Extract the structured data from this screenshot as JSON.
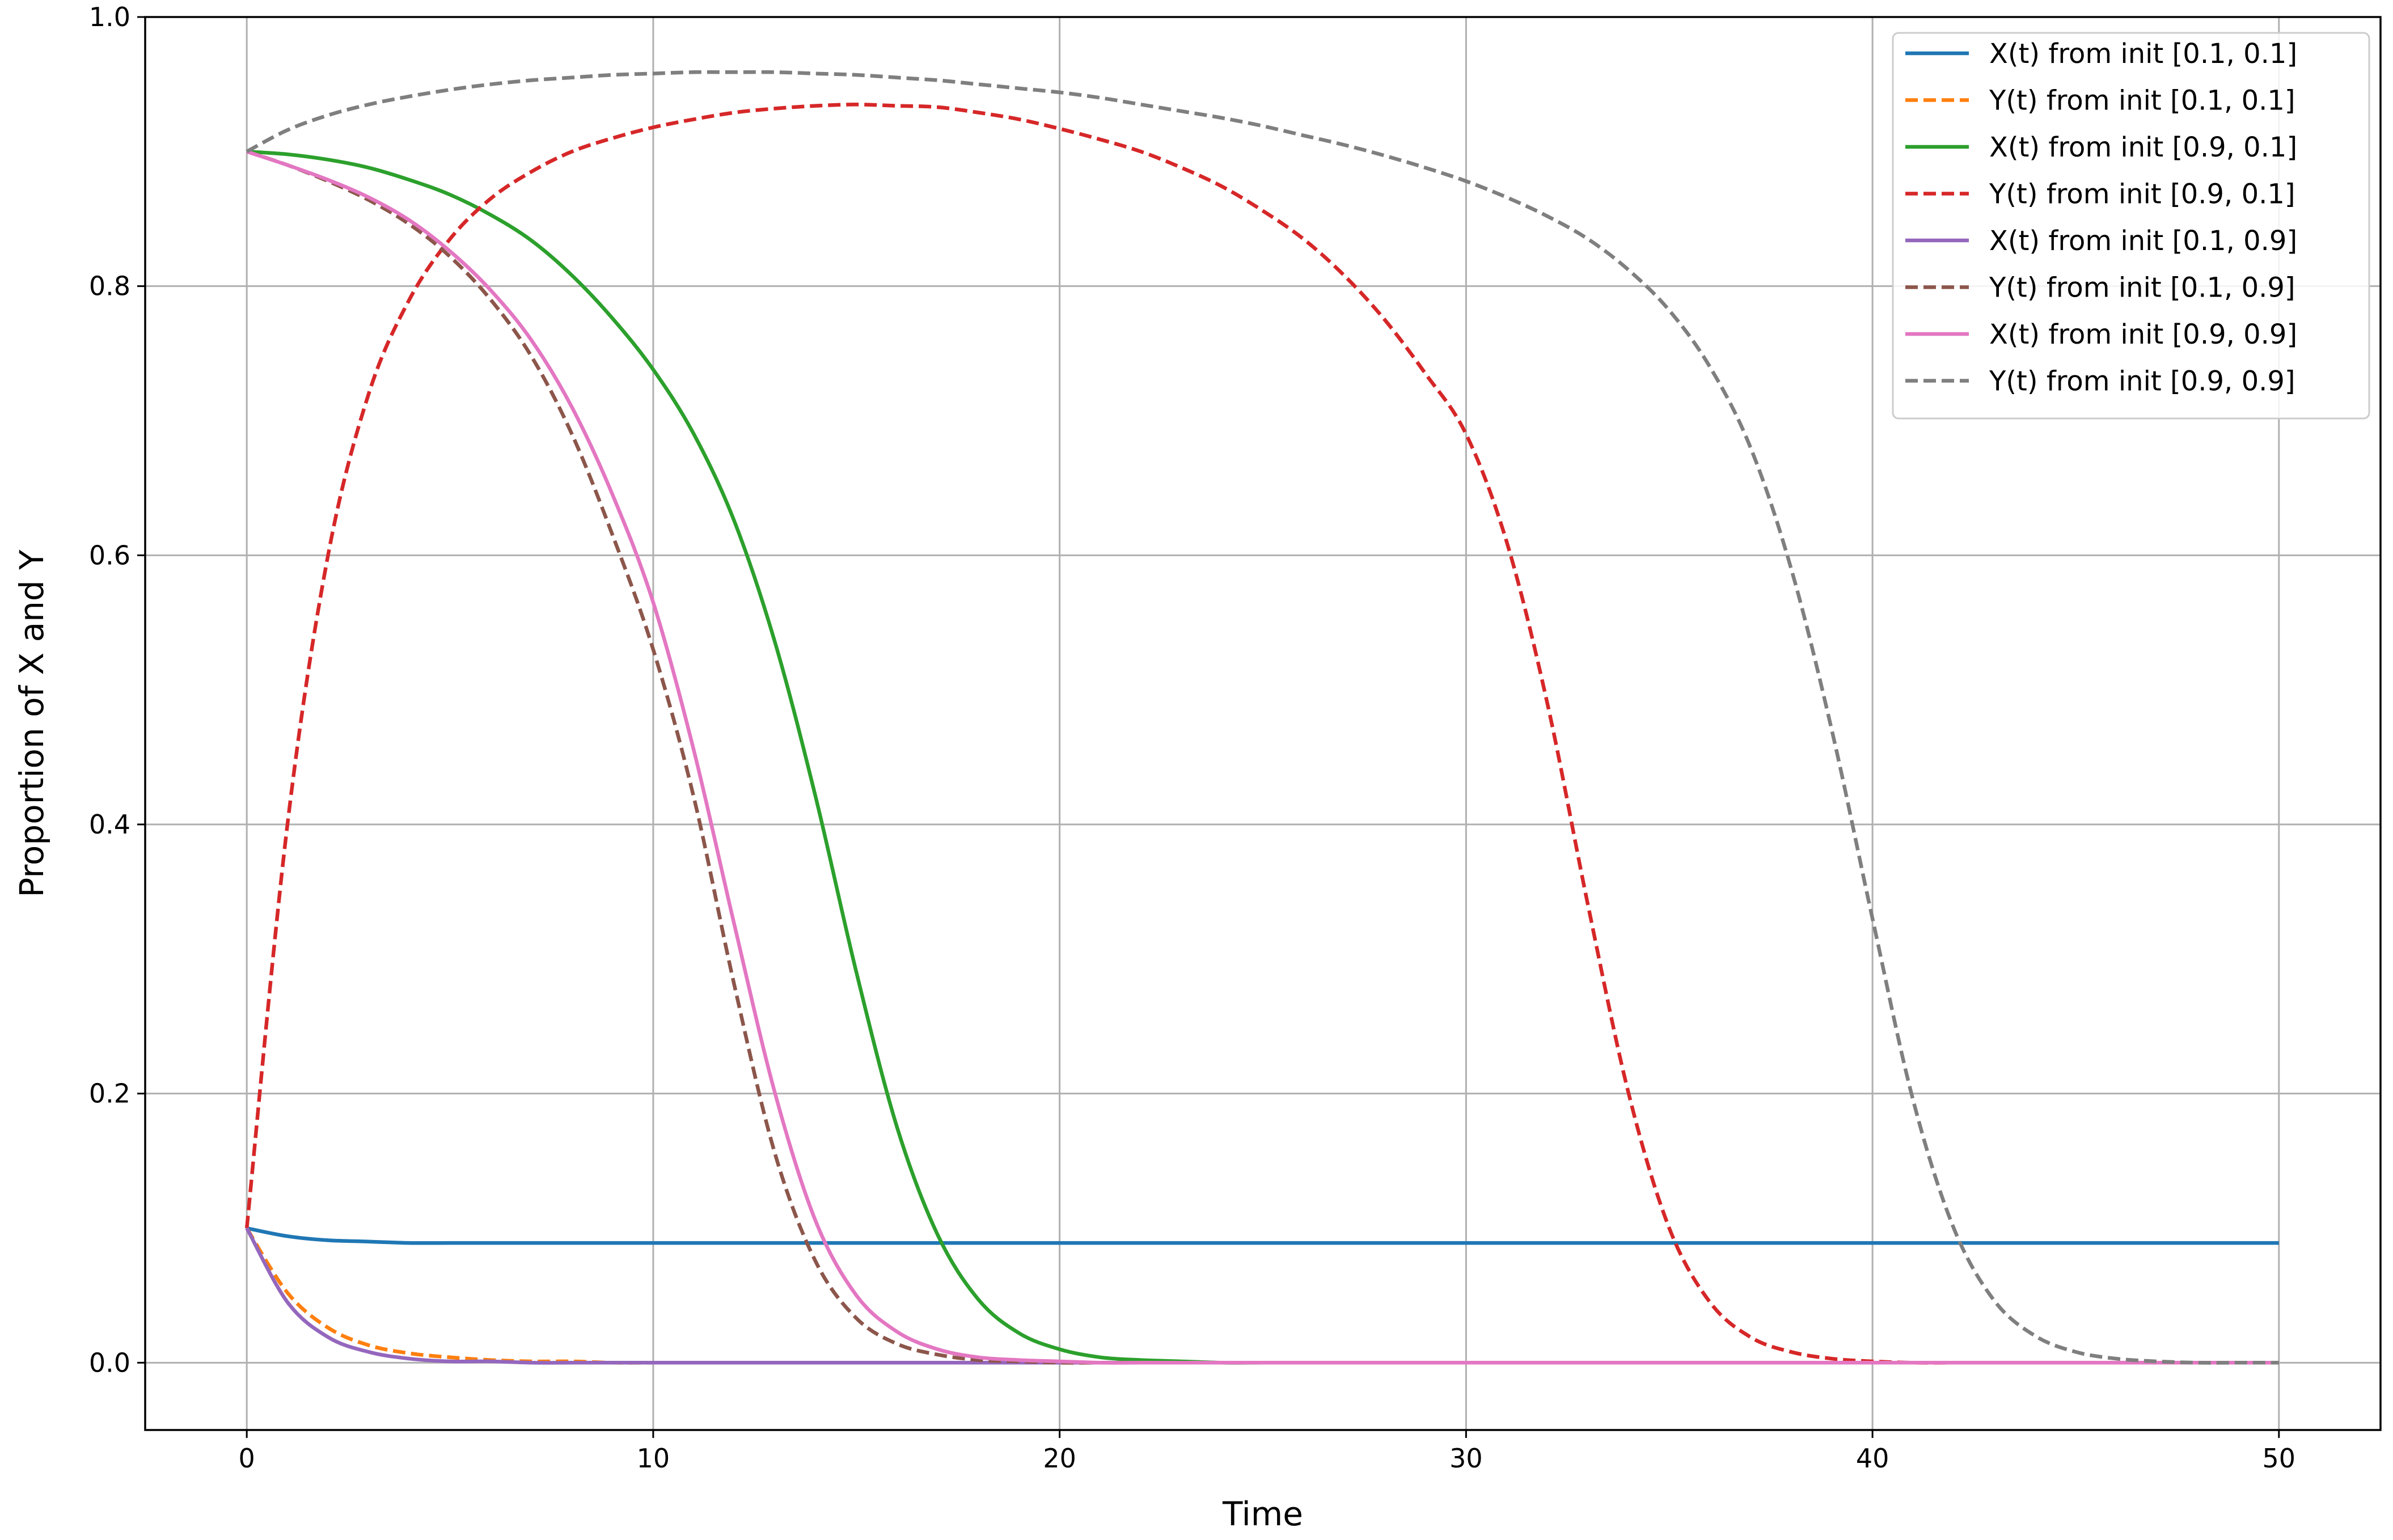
{
  "chart_data": {
    "type": "line",
    "title": "",
    "xlabel": "Time",
    "ylabel": "Proportion of X and Y",
    "xlim": [
      -2.5,
      52.5
    ],
    "ylim": [
      -0.05,
      1.0
    ],
    "xticks": [
      0,
      10,
      20,
      30,
      40,
      50
    ],
    "xtick_labels": [
      "0",
      "10",
      "20",
      "30",
      "40",
      "50"
    ],
    "yticks": [
      0.0,
      0.2,
      0.4,
      0.6,
      0.8,
      1.0
    ],
    "ytick_labels": [
      "0.0",
      "0.2",
      "0.4",
      "0.6",
      "0.8",
      "1.0"
    ],
    "grid": true,
    "legend_position": "top-right",
    "x": [
      0,
      1,
      2,
      3,
      4,
      5,
      6,
      7,
      8,
      9,
      10,
      11,
      12,
      13,
      14,
      15,
      16,
      17,
      18,
      19,
      20,
      21,
      22,
      23,
      24,
      25,
      26,
      27,
      28,
      29,
      30,
      31,
      32,
      33,
      34,
      35,
      36,
      37,
      38,
      39,
      40,
      41,
      42,
      43,
      44,
      45,
      46,
      47,
      48,
      49,
      50
    ],
    "series": [
      {
        "name": "X(t) from init [0.1, 0.1]",
        "color": "#1f77b4",
        "dash": "solid",
        "values": [
          0.1,
          0.094,
          0.091,
          0.09,
          0.089,
          0.089,
          0.089,
          0.089,
          0.089,
          0.089,
          0.089,
          0.089,
          0.089,
          0.089,
          0.089,
          0.089,
          0.089,
          0.089,
          0.089,
          0.089,
          0.089,
          0.089,
          0.089,
          0.089,
          0.089,
          0.089,
          0.089,
          0.089,
          0.089,
          0.089,
          0.089,
          0.089,
          0.089,
          0.089,
          0.089,
          0.089,
          0.089,
          0.089,
          0.089,
          0.089,
          0.089,
          0.089,
          0.089,
          0.089,
          0.089,
          0.089,
          0.089,
          0.089,
          0.089,
          0.089,
          0.089
        ]
      },
      {
        "name": "Y(t) from init [0.1, 0.1]",
        "color": "#ff7f0e",
        "dash": "dashed",
        "values": [
          0.1,
          0.052,
          0.026,
          0.013,
          0.007,
          0.004,
          0.002,
          0.001,
          0.001,
          0.0,
          0.0,
          0.0,
          0.0,
          0.0,
          0.0,
          0.0,
          0.0,
          0.0,
          0.0,
          0.0,
          0.0,
          0.0,
          0.0,
          0.0,
          0.0,
          0.0,
          0.0,
          0.0,
          0.0,
          0.0,
          0.0,
          0.0,
          0.0,
          0.0,
          0.0,
          0.0,
          0.0,
          0.0,
          0.0,
          0.0,
          0.0,
          0.0,
          0.0,
          0.0,
          0.0,
          0.0,
          0.0,
          0.0,
          0.0,
          0.0,
          0.0
        ]
      },
      {
        "name": "X(t) from init [0.9, 0.1]",
        "color": "#2ca02c",
        "dash": "solid",
        "values": [
          0.9,
          0.898,
          0.894,
          0.888,
          0.879,
          0.868,
          0.853,
          0.834,
          0.808,
          0.776,
          0.738,
          0.69,
          0.625,
          0.535,
          0.42,
          0.29,
          0.175,
          0.095,
          0.047,
          0.022,
          0.01,
          0.004,
          0.002,
          0.001,
          0.0,
          0.0,
          0.0,
          0.0,
          0.0,
          0.0,
          0.0,
          0.0,
          0.0,
          0.0,
          0.0,
          0.0,
          0.0,
          0.0,
          0.0,
          0.0,
          0.0,
          0.0,
          0.0,
          0.0,
          0.0,
          0.0,
          0.0,
          0.0,
          0.0,
          0.0,
          0.0
        ]
      },
      {
        "name": "Y(t) from init [0.9, 0.1]",
        "color": "#d62728",
        "dash": "dashed",
        "values": [
          0.1,
          0.4,
          0.6,
          0.72,
          0.79,
          0.835,
          0.865,
          0.885,
          0.9,
          0.91,
          0.918,
          0.924,
          0.929,
          0.932,
          0.934,
          0.935,
          0.934,
          0.933,
          0.929,
          0.924,
          0.917,
          0.909,
          0.9,
          0.888,
          0.874,
          0.856,
          0.835,
          0.808,
          0.775,
          0.735,
          0.69,
          0.61,
          0.49,
          0.34,
          0.2,
          0.1,
          0.045,
          0.019,
          0.008,
          0.003,
          0.001,
          0.0,
          0.0,
          0.0,
          0.0,
          0.0,
          0.0,
          0.0,
          0.0,
          0.0,
          0.0
        ]
      },
      {
        "name": "X(t) from init [0.1, 0.9]",
        "color": "#9467bd",
        "dash": "solid",
        "values": [
          0.1,
          0.045,
          0.019,
          0.008,
          0.003,
          0.001,
          0.001,
          0.0,
          0.0,
          0.0,
          0.0,
          0.0,
          0.0,
          0.0,
          0.0,
          0.0,
          0.0,
          0.0,
          0.0,
          0.0,
          0.0,
          0.0,
          0.0,
          0.0,
          0.0,
          0.0,
          0.0,
          0.0,
          0.0,
          0.0,
          0.0,
          0.0,
          0.0,
          0.0,
          0.0,
          0.0,
          0.0,
          0.0,
          0.0,
          0.0,
          0.0,
          0.0,
          0.0,
          0.0,
          0.0,
          0.0,
          0.0,
          0.0,
          0.0,
          0.0,
          0.0
        ]
      },
      {
        "name": "Y(t) from init [0.1, 0.9]",
        "color": "#8c564b",
        "dash": "dashed",
        "values": [
          0.9,
          0.89,
          0.878,
          0.864,
          0.846,
          0.822,
          0.79,
          0.748,
          0.69,
          0.615,
          0.53,
          0.42,
          0.28,
          0.155,
          0.075,
          0.033,
          0.014,
          0.006,
          0.002,
          0.001,
          0.0,
          0.0,
          0.0,
          0.0,
          0.0,
          0.0,
          0.0,
          0.0,
          0.0,
          0.0,
          0.0,
          0.0,
          0.0,
          0.0,
          0.0,
          0.0,
          0.0,
          0.0,
          0.0,
          0.0,
          0.0,
          0.0,
          0.0,
          0.0,
          0.0,
          0.0,
          0.0,
          0.0,
          0.0,
          0.0,
          0.0
        ]
      },
      {
        "name": "X(t) from init [0.9, 0.9]",
        "color": "#e377c2",
        "dash": "solid",
        "values": [
          0.9,
          0.89,
          0.879,
          0.866,
          0.849,
          0.826,
          0.797,
          0.76,
          0.71,
          0.645,
          0.565,
          0.455,
          0.325,
          0.2,
          0.105,
          0.05,
          0.023,
          0.01,
          0.004,
          0.002,
          0.001,
          0.0,
          0.0,
          0.0,
          0.0,
          0.0,
          0.0,
          0.0,
          0.0,
          0.0,
          0.0,
          0.0,
          0.0,
          0.0,
          0.0,
          0.0,
          0.0,
          0.0,
          0.0,
          0.0,
          0.0,
          0.0,
          0.0,
          0.0,
          0.0,
          0.0,
          0.0,
          0.0,
          0.0,
          0.0,
          0.0
        ]
      },
      {
        "name": "Y(t) from init [0.9, 0.9]",
        "color": "#7f7f7f",
        "dash": "dashed",
        "values": [
          0.9,
          0.916,
          0.927,
          0.935,
          0.941,
          0.946,
          0.95,
          0.953,
          0.955,
          0.957,
          0.958,
          0.959,
          0.959,
          0.959,
          0.958,
          0.957,
          0.955,
          0.953,
          0.95,
          0.947,
          0.944,
          0.94,
          0.935,
          0.93,
          0.925,
          0.919,
          0.912,
          0.905,
          0.897,
          0.888,
          0.878,
          0.866,
          0.852,
          0.835,
          0.812,
          0.782,
          0.74,
          0.68,
          0.59,
          0.47,
          0.33,
          0.195,
          0.1,
          0.046,
          0.02,
          0.008,
          0.003,
          0.001,
          0.0,
          0.0,
          0.0
        ]
      }
    ]
  }
}
